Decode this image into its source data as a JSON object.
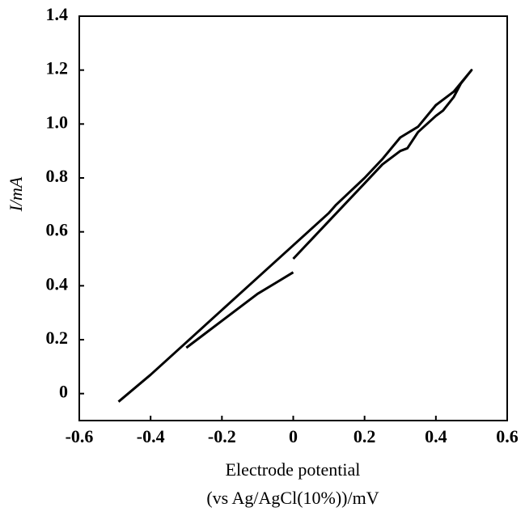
{
  "chart_data": {
    "type": "line",
    "x_label": [
      "Electrode potential",
      "(vs Ag/AgCl(10%))/mV"
    ],
    "y_label": "I/mA",
    "color": "#000000",
    "x": [
      -0.49,
      -0.4,
      -0.3,
      -0.2,
      -0.1,
      0,
      0.1,
      0.12,
      0.2,
      0.25,
      0.3,
      0.35,
      0.4,
      0.45,
      0.5,
      0.47,
      0.45,
      0.42,
      0.4,
      0.35,
      0.32,
      0.3,
      0.25,
      0.2,
      0.1,
      0.0,
      null,
      0.0,
      -0.05,
      -0.1,
      -0.2,
      -0.3
    ],
    "values": [
      -0.03,
      0.07,
      0.19,
      0.31,
      0.43,
      0.55,
      0.67,
      0.7,
      0.8,
      0.87,
      0.95,
      0.99,
      1.07,
      1.12,
      1.2,
      1.15,
      1.1,
      1.05,
      1.03,
      0.97,
      0.91,
      0.9,
      0.85,
      0.78,
      0.64,
      0.5,
      null,
      0.45,
      0.41,
      0.37,
      0.27,
      0.17
    ],
    "xlim": [
      -0.6,
      0.6
    ],
    "ylim": [
      -0.1,
      1.4
    ],
    "xticks": [
      -0.6,
      -0.4,
      -0.2,
      0,
      0.2,
      0.4,
      0.6
    ],
    "yticks": [
      0,
      0.2,
      0.4,
      0.6,
      0.8,
      {
        "value": 1.0,
        "label": "1.0"
      },
      1.2,
      1.4
    ]
  }
}
